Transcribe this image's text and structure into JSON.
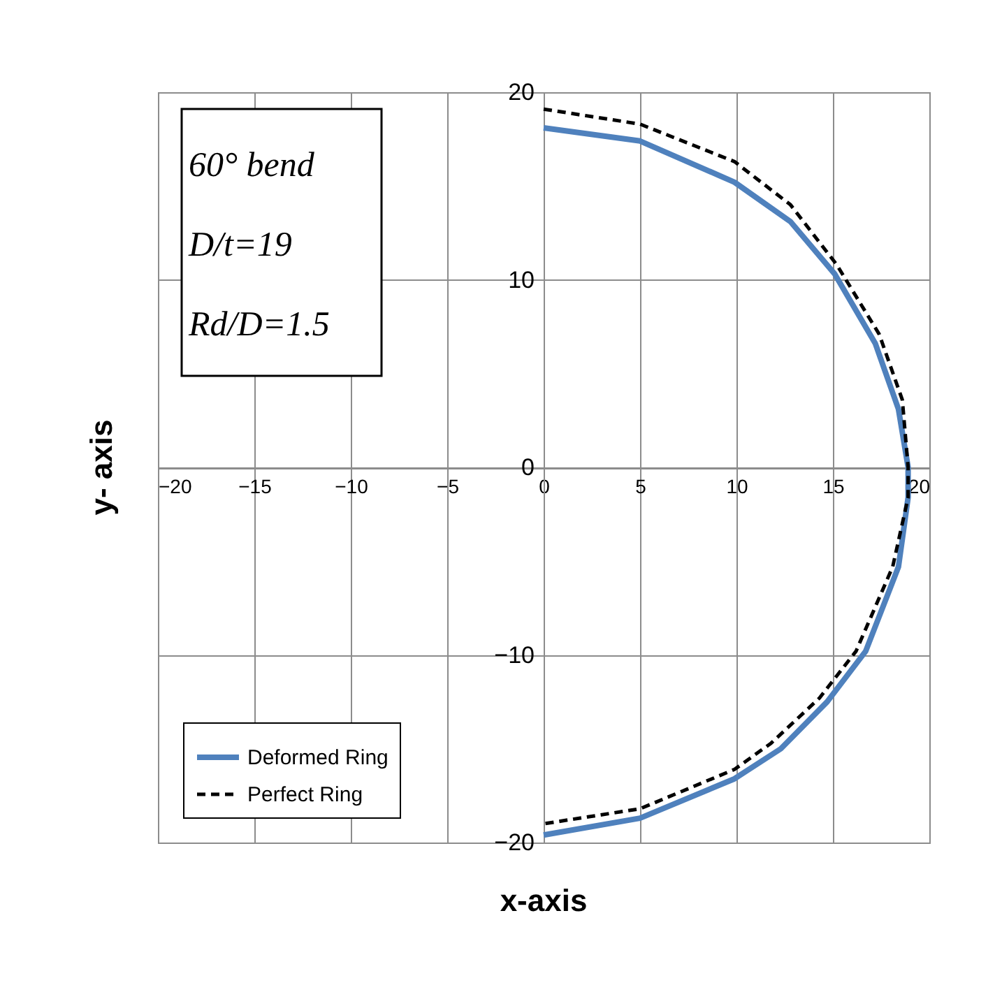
{
  "chart_data": {
    "type": "line",
    "xlabel": "x-axis",
    "ylabel": "y- axis",
    "xlim": [
      -20,
      20
    ],
    "ylim": [
      -20,
      20
    ],
    "xticks": [
      -20,
      -15,
      -10,
      -5,
      0,
      5,
      10,
      15,
      20
    ],
    "yticks": [
      -20,
      -10,
      0,
      10,
      20
    ],
    "grid": true,
    "legend": "bottom left",
    "marker": "none",
    "annotations": [
      "60° bend",
      "D/t=19",
      "Rd/D=1.5"
    ],
    "series": [
      {
        "name": "Deformed Ring",
        "color": "#4f81bd",
        "line_style": "solid",
        "x": [
          0,
          5.0,
          9.9,
          12.8,
          15.1,
          17.2,
          18.4,
          18.9,
          18.9,
          18.4,
          16.7,
          14.7,
          12.3,
          9.9,
          5.0,
          0
        ],
        "values": [
          18.1,
          17.4,
          15.2,
          13.1,
          10.3,
          6.6,
          3.1,
          0,
          -1.6,
          -5.3,
          -9.8,
          -12.5,
          -15.0,
          -16.6,
          -18.7,
          -19.6
        ]
      },
      {
        "name": "Perfect Ring",
        "color": "#000000",
        "line_style": "dashed",
        "x": [
          0,
          5.0,
          9.9,
          12.8,
          15.2,
          17.4,
          18.6,
          18.9,
          18.9,
          18.1,
          16.2,
          14.3,
          11.8,
          9.9,
          5.0,
          0
        ],
        "values": [
          19.1,
          18.3,
          16.3,
          14.0,
          10.8,
          7.1,
          3.6,
          0,
          -1.6,
          -5.3,
          -9.8,
          -12.3,
          -14.7,
          -16.1,
          -18.2,
          -19.0
        ]
      }
    ]
  }
}
